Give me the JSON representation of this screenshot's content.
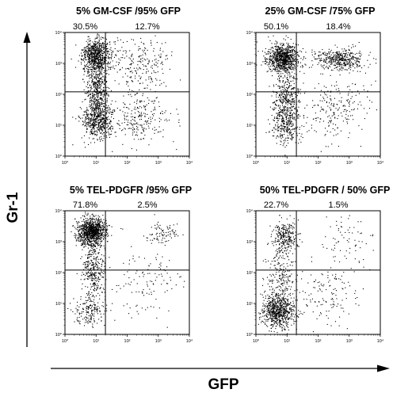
{
  "figure": {
    "y_axis_label": "Gr-1",
    "x_axis_label": "GFP"
  },
  "chart_data": [
    {
      "type": "scatter",
      "title": "5% GM-CSF /95% GFP",
      "quadrant_labels": [
        "30.5%",
        "12.7%"
      ],
      "x_scale": "log",
      "y_scale": "log",
      "xlim": [
        1,
        10000
      ],
      "ylim": [
        1,
        10000
      ],
      "x_ticks": [
        "10⁰",
        "10¹",
        "10²",
        "10³",
        "10⁴"
      ],
      "y_ticks": [
        "10⁰",
        "10¹",
        "10²",
        "10³",
        "10⁴"
      ],
      "quadrant_gate": {
        "x": 20,
        "y": 120
      },
      "populations": [
        {
          "center": [
            10,
            1800
          ],
          "spread": [
            1.7,
            1.9
          ],
          "share": 0.34
        },
        {
          "center": [
            11,
            15
          ],
          "spread": [
            1.8,
            2.0
          ],
          "share": 0.24
        },
        {
          "center": [
            11,
            150
          ],
          "spread": [
            1.5,
            2.6
          ],
          "share": 0.2
        },
        {
          "center": [
            250,
            900
          ],
          "spread": [
            3.2,
            3.0
          ],
          "share": 0.11
        },
        {
          "center": [
            250,
            15
          ],
          "spread": [
            3.2,
            2.6
          ],
          "share": 0.11
        }
      ],
      "density": 2200
    },
    {
      "type": "scatter",
      "title": "25% GM-CSF /75% GFP",
      "quadrant_labels": [
        "50.1%",
        "18.4%"
      ],
      "x_scale": "log",
      "y_scale": "log",
      "xlim": [
        1,
        10000
      ],
      "ylim": [
        1,
        10000
      ],
      "x_ticks": [
        "10⁰",
        "10¹",
        "10²",
        "10³",
        "10⁴"
      ],
      "y_ticks": [
        "10⁰",
        "10¹",
        "10²",
        "10³",
        "10⁴"
      ],
      "quadrant_gate": {
        "x": 20,
        "y": 120
      },
      "populations": [
        {
          "center": [
            7,
            1500
          ],
          "spread": [
            1.8,
            1.7
          ],
          "share": 0.4
        },
        {
          "center": [
            500,
            1400
          ],
          "spread": [
            2.6,
            1.5
          ],
          "share": 0.2
        },
        {
          "center": [
            9,
            60
          ],
          "spread": [
            1.6,
            3.0
          ],
          "share": 0.2
        },
        {
          "center": [
            9,
            8
          ],
          "spread": [
            1.7,
            2.0
          ],
          "share": 0.1
        },
        {
          "center": [
            300,
            40
          ],
          "spread": [
            3.5,
            3.2
          ],
          "share": 0.1
        }
      ],
      "density": 2200
    },
    {
      "type": "scatter",
      "title": "5% TEL-PDGFR /95% GFP",
      "quadrant_labels": [
        "71.8%",
        "2.5%"
      ],
      "x_scale": "log",
      "y_scale": "log",
      "xlim": [
        1,
        10000
      ],
      "ylim": [
        1,
        10000
      ],
      "x_ticks": [
        "10⁰",
        "10¹",
        "10²",
        "10³",
        "10⁴"
      ],
      "y_ticks": [
        "10⁰",
        "10¹",
        "10²",
        "10³",
        "10⁴"
      ],
      "quadrant_gate": {
        "x": 20,
        "y": 120
      },
      "populations": [
        {
          "center": [
            7,
            2200
          ],
          "spread": [
            1.7,
            1.7
          ],
          "share": 0.58
        },
        {
          "center": [
            8,
            120
          ],
          "spread": [
            1.5,
            3.2
          ],
          "share": 0.2
        },
        {
          "center": [
            6,
            6
          ],
          "spread": [
            1.8,
            1.8
          ],
          "share": 0.1
        },
        {
          "center": [
            1500,
            2000
          ],
          "spread": [
            1.8,
            1.5
          ],
          "share": 0.05
        },
        {
          "center": [
            400,
            50
          ],
          "spread": [
            3.5,
            4.0
          ],
          "share": 0.07
        }
      ],
      "density": 1700
    },
    {
      "type": "scatter",
      "title": "50% TEL-PDGFR / 50% GFP",
      "quadrant_labels": [
        "22.7%",
        "1.5%"
      ],
      "x_scale": "log",
      "y_scale": "log",
      "xlim": [
        1,
        10000
      ],
      "ylim": [
        1,
        10000
      ],
      "x_ticks": [
        "10⁰",
        "10¹",
        "10²",
        "10³",
        "10⁴"
      ],
      "y_ticks": [
        "10⁰",
        "10¹",
        "10²",
        "10³",
        "10⁴"
      ],
      "quadrant_gate": {
        "x": 20,
        "y": 120
      },
      "populations": [
        {
          "center": [
            5,
            6
          ],
          "spread": [
            1.8,
            1.9
          ],
          "share": 0.5
        },
        {
          "center": [
            8,
            1500
          ],
          "spread": [
            1.6,
            1.8
          ],
          "share": 0.2
        },
        {
          "center": [
            6,
            80
          ],
          "spread": [
            1.8,
            3.0
          ],
          "share": 0.15
        },
        {
          "center": [
            1000,
            1200
          ],
          "spread": [
            3.0,
            2.5
          ],
          "share": 0.05
        },
        {
          "center": [
            200,
            20
          ],
          "spread": [
            3.5,
            3.5
          ],
          "share": 0.1
        }
      ],
      "density": 1400
    }
  ]
}
